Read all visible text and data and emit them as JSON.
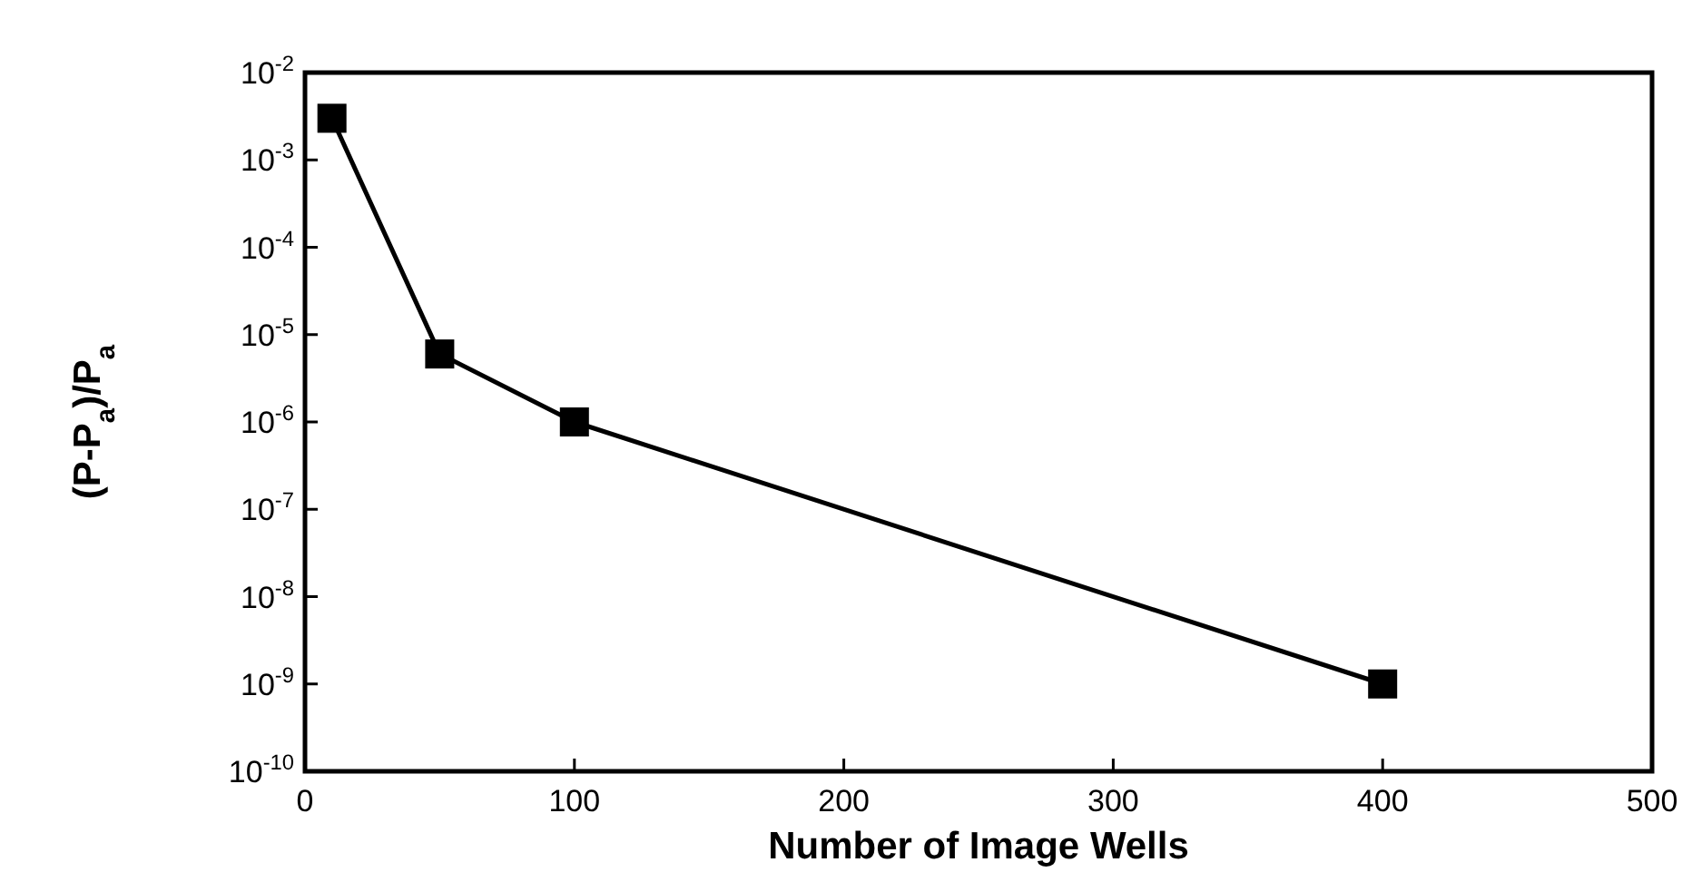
{
  "chart_data": {
    "type": "line",
    "xlabel": "Number of Image Wells",
    "ylabel": "(P-P$_{a}$)/P$_{a}$",
    "log": "y",
    "marker": "square",
    "line_style": "solid",
    "x": [
      10,
      50,
      100,
      400
    ],
    "series": [
      {
        "color": "#000000",
        "values": [
          0.003,
          6e-06,
          1e-06,
          1e-09
        ]
      }
    ],
    "xlim": [
      0,
      500
    ],
    "xticks": [
      0,
      100,
      200,
      300,
      400,
      500
    ],
    "ylim": [
      1e-10,
      0.01
    ],
    "yticks": [
      {
        "value": 1e-10,
        "label": "10$^{-10}$"
      },
      {
        "value": 1e-09,
        "label": "10$^{-9}$"
      },
      {
        "value": 1e-08,
        "label": "10$^{-8}$"
      },
      {
        "value": 1e-07,
        "label": "10$^{-7}$"
      },
      {
        "value": 1e-06,
        "label": "10$^{-6}$"
      },
      {
        "value": 1e-05,
        "label": "10$^{-5}$"
      },
      {
        "value": 0.0001,
        "label": "10$^{-4}$"
      },
      {
        "value": 0.001,
        "label": "10$^{-3}$"
      },
      {
        "value": 0.01,
        "label": "10$^{-2}$"
      }
    ]
  }
}
